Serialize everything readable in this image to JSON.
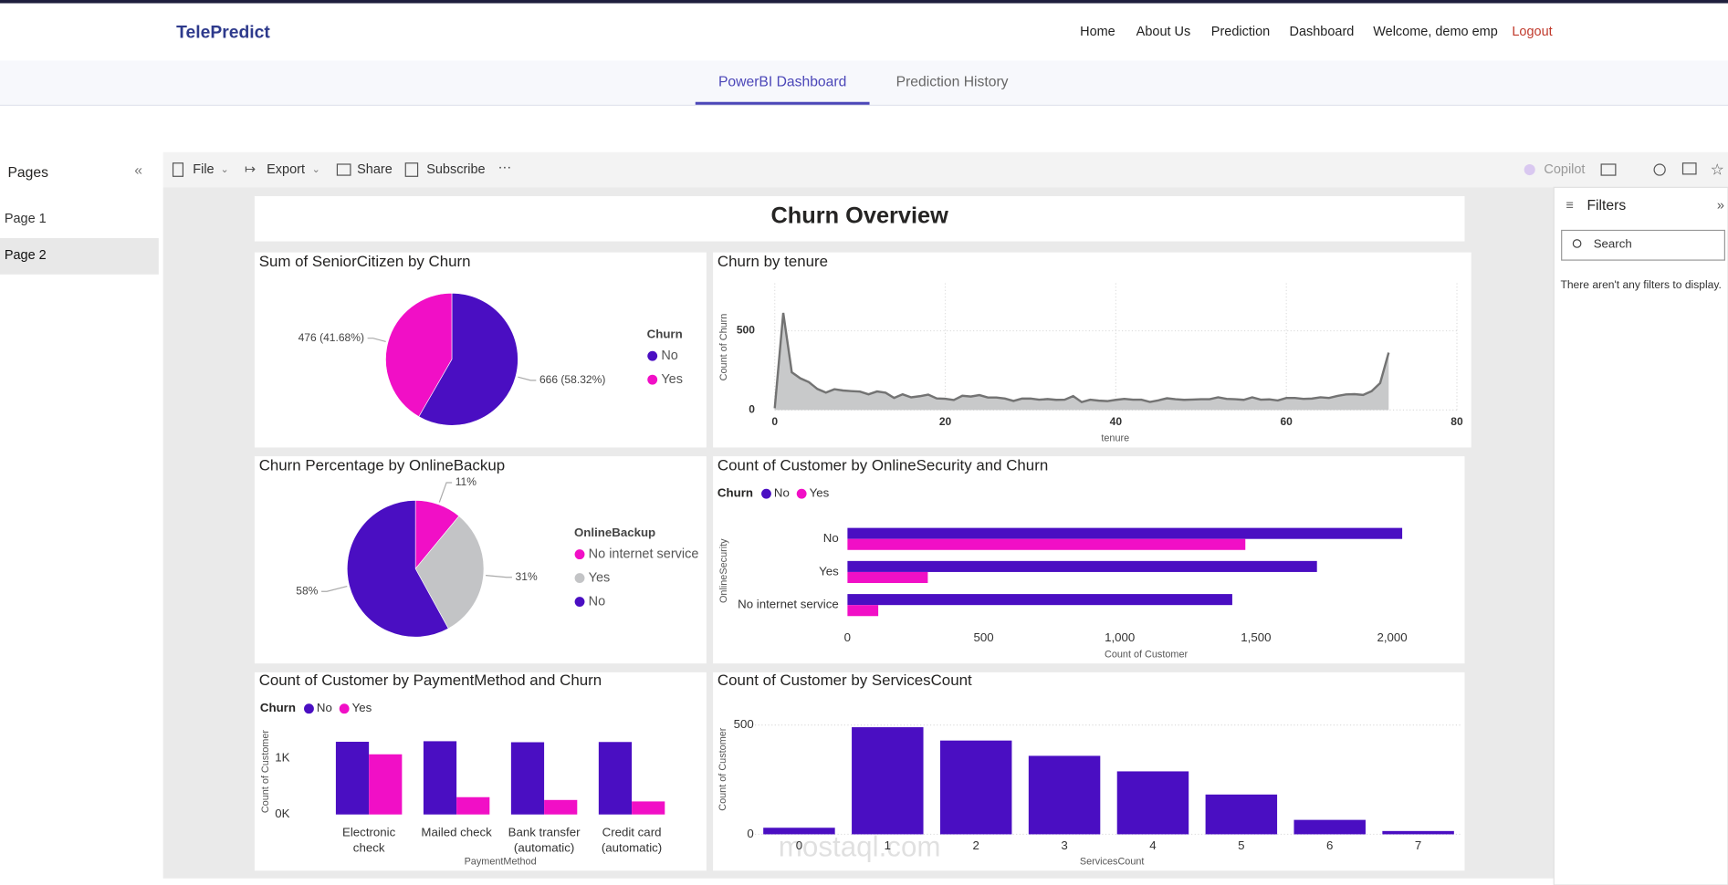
{
  "header": {
    "brand": "TelePredict",
    "links": [
      "Home",
      "About Us",
      "Prediction",
      "Dashboard",
      "Welcome, demo emp",
      "Logout"
    ]
  },
  "tabs": [
    "PowerBI Dashboard",
    "Prediction History"
  ],
  "pages": {
    "title": "Pages",
    "items": [
      "Page 1",
      "Page 2"
    ]
  },
  "toolbar": {
    "items": [
      "File",
      "Export",
      "Share",
      "Subscribe"
    ],
    "copilot": "Copilot"
  },
  "filters": {
    "title": "Filters",
    "search": "Search",
    "empty": "There aren't any filters to display."
  },
  "report_title": "Churn Overview",
  "watermark": "mostaql.com",
  "chart_data": [
    {
      "type": "pie",
      "title": "Sum of SeniorCitizen by Churn",
      "legend_title": "Churn",
      "categories": [
        "No",
        "Yes"
      ],
      "values": [
        666,
        476
      ],
      "value_labels": [
        "666 (58.32%)",
        "476 (41.68%)"
      ],
      "colors": [
        "#4a0ec2",
        "#f10fc6"
      ]
    },
    {
      "type": "area",
      "title": "Churn by tenure",
      "x_label": "tenure",
      "y_label": "Count of Churn",
      "x": [
        0,
        1,
        2,
        3,
        4,
        5,
        6,
        7,
        8,
        9,
        10,
        11,
        12,
        13,
        14,
        15,
        16,
        17,
        18,
        19,
        20,
        21,
        22,
        23,
        24,
        25,
        26,
        27,
        28,
        29,
        30,
        31,
        32,
        33,
        34,
        35,
        36,
        37,
        38,
        39,
        40,
        41,
        42,
        43,
        44,
        45,
        46,
        47,
        48,
        49,
        50,
        51,
        52,
        53,
        54,
        55,
        56,
        57,
        58,
        59,
        60,
        61,
        62,
        63,
        64,
        65,
        66,
        67,
        68,
        69,
        70,
        71,
        72
      ],
      "values": [
        11,
        613,
        238,
        200,
        176,
        133,
        110,
        131,
        123,
        119,
        116,
        99,
        117,
        109,
        76,
        99,
        80,
        87,
        97,
        73,
        71,
        63,
        90,
        85,
        94,
        79,
        79,
        72,
        57,
        72,
        72,
        65,
        69,
        64,
        65,
        88,
        50,
        65,
        59,
        56,
        64,
        70,
        65,
        65,
        51,
        61,
        74,
        68,
        64,
        66,
        68,
        68,
        80,
        70,
        68,
        64,
        80,
        65,
        67,
        60,
        76,
        76,
        70,
        72,
        80,
        76,
        89,
        98,
        100,
        95,
        119,
        170,
        362
      ],
      "color": "#c8c9ca",
      "line_color": "#737373",
      "xlim": [
        0,
        80
      ],
      "xticks": [
        0,
        20,
        40,
        60,
        80
      ],
      "ylim": [
        0,
        800
      ],
      "yticks": [
        0,
        500
      ],
      "grid": true
    },
    {
      "type": "pie",
      "title": "Churn Percentage by OnlineBackup",
      "legend_title": "OnlineBackup",
      "categories": [
        "No internet service",
        "Yes",
        "No"
      ],
      "values": [
        11,
        31,
        58
      ],
      "value_labels": [
        "11%",
        "31%",
        "58%"
      ],
      "colors": [
        "#f10fc6",
        "#c3c4c6",
        "#4a0ec2"
      ]
    },
    {
      "type": "hbar",
      "title": "Count of Customer by OnlineSecurity and Churn",
      "legend_title": "Churn",
      "x_label": "Count of Customer",
      "y_label": "OnlineSecurity",
      "categories": [
        "No",
        "Yes",
        "No internet service"
      ],
      "series": [
        {
          "name": "No",
          "color": "#4a0ec2",
          "values": [
            2037,
            1724,
            1413
          ]
        },
        {
          "name": "Yes",
          "color": "#f10fc6",
          "values": [
            1461,
            295,
            113
          ]
        }
      ],
      "xlim": [
        0,
        2250
      ],
      "xticks": [
        0,
        500,
        {
          "value": 1000,
          "label": "1,000"
        },
        {
          "value": 1500,
          "label": "1,500"
        },
        {
          "value": 2000,
          "label": "2,000"
        }
      ]
    },
    {
      "type": "grouped_bar",
      "title": "Count of Customer by PaymentMethod and Churn",
      "legend_title": "Churn",
      "x_label": "PaymentMethod",
      "y_label": "Count of Customer",
      "categories": [
        [
          "Electronic",
          "check"
        ],
        [
          "Mailed check"
        ],
        [
          "Bank transfer",
          "(automatic)"
        ],
        [
          "Credit card",
          "(automatic)"
        ]
      ],
      "series": [
        {
          "name": "No",
          "color": "#4a0ec2",
          "values": [
            1294,
            1304,
            1286,
            1290
          ]
        },
        {
          "name": "Yes",
          "color": "#f10fc6",
          "values": [
            1071,
            308,
            258,
            232
          ]
        }
      ],
      "ylim": [
        0,
        1550
      ],
      "yticks": [
        {
          "value": 0,
          "label": "0K"
        },
        {
          "value": 1000,
          "label": "1K"
        }
      ]
    },
    {
      "type": "bar",
      "title": "Count of Customer by ServicesCount",
      "x_label": "ServicesCount",
      "y_label": "Count of Customer",
      "categories": [
        "0",
        "1",
        "2",
        "3",
        "4",
        "5",
        "6",
        "7"
      ],
      "values": [
        30,
        490,
        429,
        359,
        288,
        182,
        66,
        15
      ],
      "color": "#4a0ec2",
      "ylim": [
        0,
        590
      ],
      "yticks": [
        0,
        500
      ],
      "grid": true
    }
  ]
}
